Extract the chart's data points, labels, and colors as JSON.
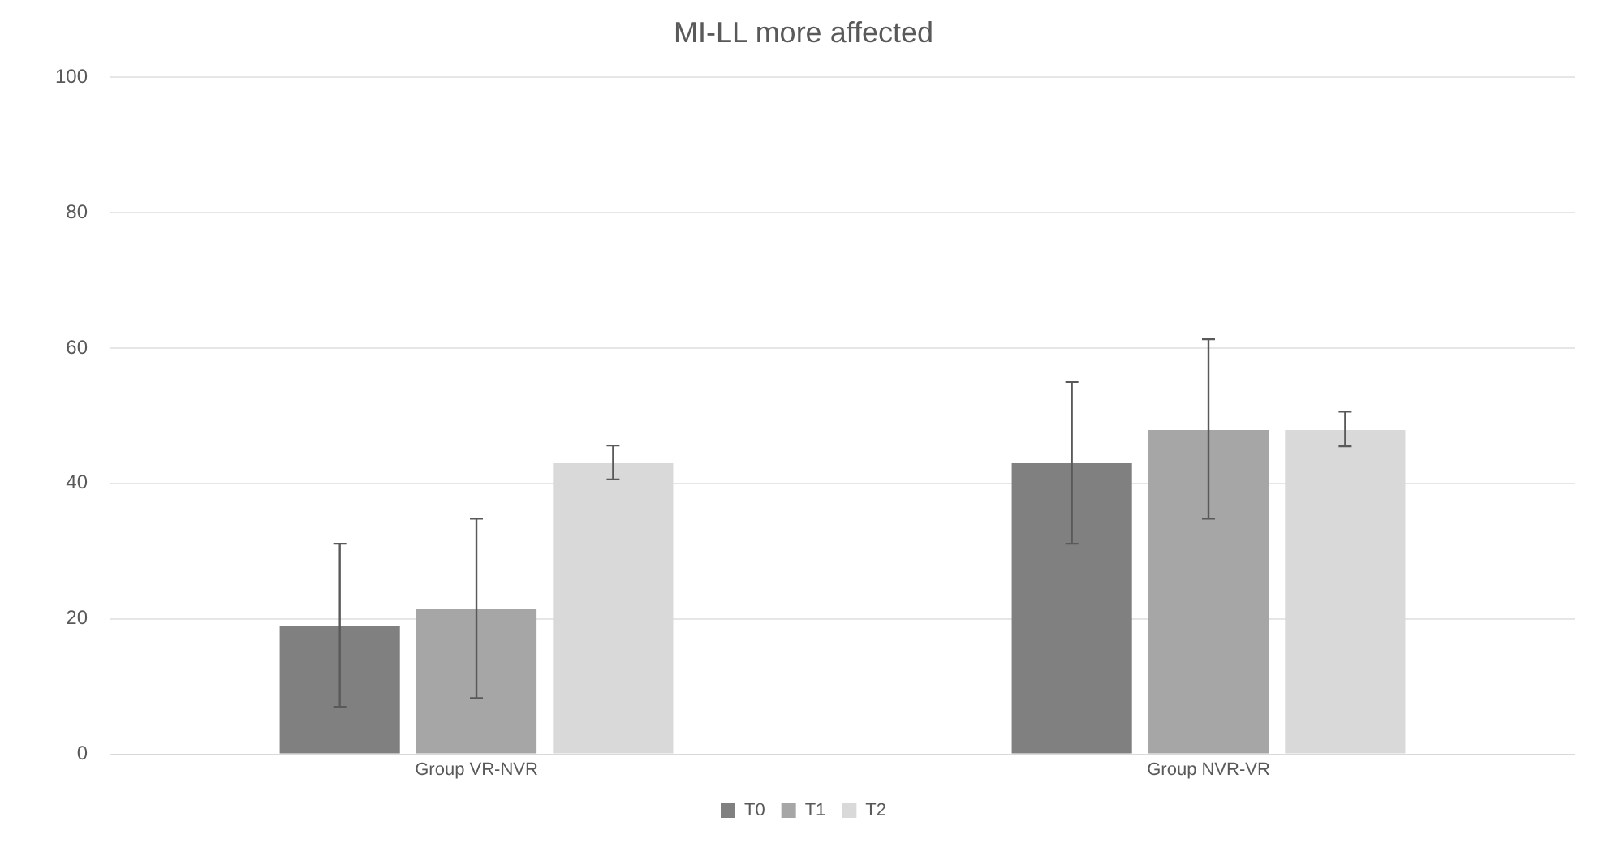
{
  "chart_data": {
    "type": "bar",
    "title": "MI-LL more affected",
    "categories": [
      "Group VR-NVR",
      "Group NVR-VR"
    ],
    "series": [
      {
        "name": "T0",
        "color": "#808080",
        "values": [
          19,
          43
        ],
        "errors": [
          [
            7,
            31.1
          ],
          [
            31.1,
            55
          ]
        ]
      },
      {
        "name": "T1",
        "color": "#a6a6a6",
        "values": [
          21.5,
          47.9
        ],
        "errors": [
          [
            8.3,
            34.8
          ],
          [
            34.8,
            61.3
          ]
        ]
      },
      {
        "name": "T2",
        "color": "#d9d9d9",
        "values": [
          43,
          47.9
        ],
        "errors": [
          [
            40.6,
            45.6
          ],
          [
            45.5,
            50.6
          ]
        ]
      }
    ],
    "ylim": [
      0,
      100
    ],
    "yticks": [
      0,
      20,
      40,
      60,
      80,
      100
    ],
    "grid": "y",
    "legend": "bottom"
  }
}
